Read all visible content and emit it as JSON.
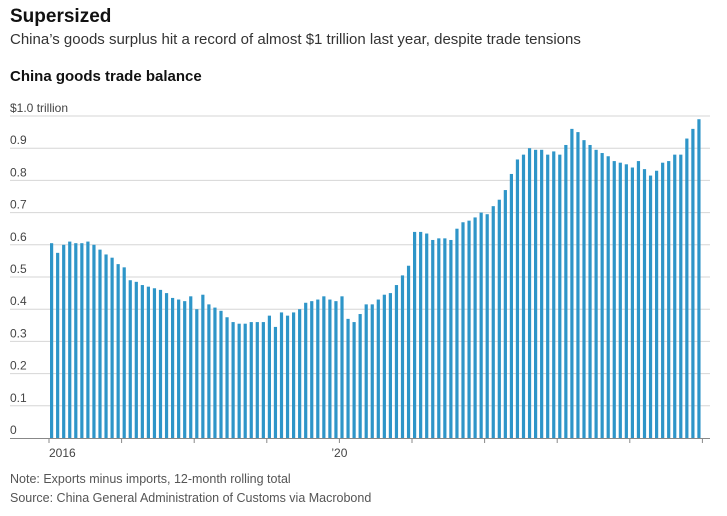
{
  "header": {
    "title": "Supersized",
    "subtitle": "China’s goods surplus hit a record of almost $1 trillion last year, despite trade tensions"
  },
  "footer": {
    "note": "Note: Exports minus imports, 12-month rolling total",
    "source": "Source: China General Administration of Customs via Macrobond"
  },
  "colors": {
    "bar": "#2e95c8",
    "grid": "#d6d6d6",
    "axis": "#888888"
  },
  "chart_data": {
    "type": "bar",
    "title": "China goods trade balance",
    "xlabel": "",
    "ylabel": "",
    "unit": "$ trillion",
    "ylim": [
      0,
      1.0
    ],
    "y_ticks": [
      {
        "value": 0,
        "label": "0"
      },
      {
        "value": 0.1,
        "label": "0.1"
      },
      {
        "value": 0.2,
        "label": "0.2"
      },
      {
        "value": 0.3,
        "label": "0.3"
      },
      {
        "value": 0.4,
        "label": "0.4"
      },
      {
        "value": 0.5,
        "label": "0.5"
      },
      {
        "value": 0.6,
        "label": "0.6"
      },
      {
        "value": 0.7,
        "label": "0.7"
      },
      {
        "value": 0.8,
        "label": "0.8"
      },
      {
        "value": 0.9,
        "label": "0.9"
      },
      {
        "value": 1.0,
        "label": "$1.0 trillion"
      }
    ],
    "x_ticks": [
      {
        "index": 0,
        "label": "2016"
      },
      {
        "index": 48,
        "label": "’20"
      }
    ],
    "year_boundaries": [
      0,
      12,
      24,
      36,
      48,
      60,
      72,
      84,
      96,
      108
    ],
    "grid": true,
    "legend": "none",
    "start": "2016-01",
    "frequency": "monthly",
    "values": [
      0.605,
      0.575,
      0.6,
      0.61,
      0.605,
      0.605,
      0.61,
      0.6,
      0.585,
      0.57,
      0.56,
      0.54,
      0.53,
      0.49,
      0.485,
      0.475,
      0.47,
      0.465,
      0.46,
      0.45,
      0.435,
      0.43,
      0.425,
      0.44,
      0.4,
      0.445,
      0.415,
      0.405,
      0.395,
      0.375,
      0.36,
      0.355,
      0.355,
      0.36,
      0.36,
      0.36,
      0.38,
      0.345,
      0.39,
      0.38,
      0.39,
      0.4,
      0.42,
      0.425,
      0.43,
      0.44,
      0.43,
      0.425,
      0.44,
      0.37,
      0.36,
      0.385,
      0.415,
      0.415,
      0.43,
      0.445,
      0.45,
      0.475,
      0.505,
      0.535,
      0.64,
      0.64,
      0.635,
      0.615,
      0.62,
      0.62,
      0.615,
      0.65,
      0.67,
      0.675,
      0.685,
      0.7,
      0.695,
      0.72,
      0.74,
      0.77,
      0.82,
      0.865,
      0.88,
      0.9,
      0.895,
      0.895,
      0.88,
      0.89,
      0.88,
      0.91,
      0.96,
      0.95,
      0.925,
      0.91,
      0.895,
      0.885,
      0.875,
      0.86,
      0.855,
      0.85,
      0.84,
      0.86,
      0.835,
      0.815,
      0.83,
      0.855,
      0.86,
      0.88,
      0.88,
      0.93,
      0.96,
      0.99
    ]
  }
}
